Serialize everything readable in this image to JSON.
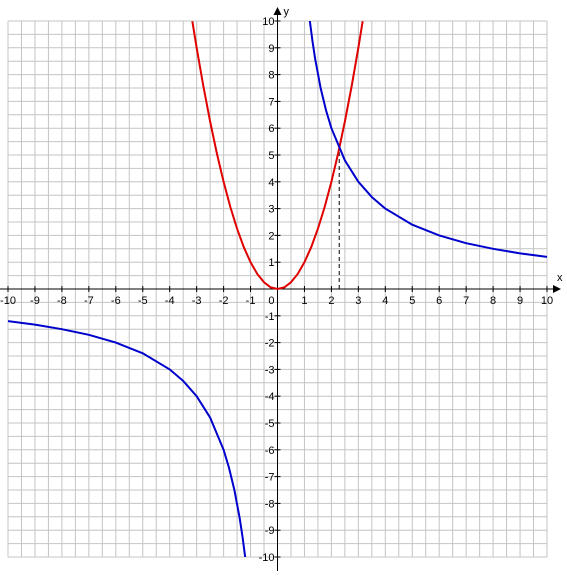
{
  "chart_data": {
    "type": "line",
    "x_label": "x",
    "y_label": "y",
    "xlim": [
      -10,
      10
    ],
    "ylim": [
      -10,
      10
    ],
    "xticks": [
      -10,
      -9,
      -8,
      -7,
      -6,
      -5,
      -4,
      -3,
      -2,
      -1,
      0,
      1,
      2,
      3,
      4,
      5,
      6,
      7,
      8,
      9,
      10
    ],
    "yticks": [
      -10,
      -9,
      -8,
      -7,
      -6,
      -5,
      -4,
      -3,
      -2,
      -1,
      1,
      2,
      3,
      4,
      5,
      6,
      7,
      8,
      9,
      10
    ],
    "minor_grid_step": 0.5,
    "grid": true,
    "series": [
      {
        "color": "#e00000",
        "x": [
          -3.16,
          -3,
          -2.75,
          -2.5,
          -2.25,
          -2,
          -1.75,
          -1.5,
          -1.25,
          -1,
          -0.75,
          -0.5,
          -0.25,
          0,
          0.25,
          0.5,
          0.75,
          1,
          1.25,
          1.5,
          1.75,
          2,
          2.25,
          2.5,
          2.75,
          3,
          3.16
        ],
        "values": [
          9.99,
          9,
          7.56,
          6.25,
          5.06,
          4,
          3.06,
          2.25,
          1.56,
          1,
          0.56,
          0.25,
          0.06,
          0,
          0.06,
          0.25,
          0.56,
          1,
          1.56,
          2.25,
          3.06,
          4,
          5.06,
          6.25,
          7.56,
          9,
          9.99
        ]
      },
      {
        "color": "#0000cc",
        "x": [
          -10,
          -9,
          -8,
          -7,
          -6,
          -5,
          -4,
          -3.5,
          -3,
          -2.5,
          -2,
          -1.8,
          -1.6,
          -1.4,
          -1.3,
          -1.2,
          null,
          1.2,
          1.3,
          1.4,
          1.6,
          1.8,
          2,
          2.5,
          3,
          3.5,
          4,
          5,
          6,
          7,
          8,
          9,
          10
        ],
        "values": [
          -1.2,
          -1.33,
          -1.5,
          -1.71,
          -2,
          -2.4,
          -3,
          -3.43,
          -4,
          -4.8,
          -6,
          -6.67,
          -7.5,
          -8.57,
          -9.23,
          -10,
          null,
          10,
          9.23,
          8.57,
          7.5,
          6.67,
          6,
          4.8,
          4,
          3.43,
          3,
          2.4,
          2,
          1.71,
          1.5,
          1.33,
          1.2
        ]
      }
    ],
    "intersection": {
      "x": 2.29,
      "y": 5.24
    }
  }
}
